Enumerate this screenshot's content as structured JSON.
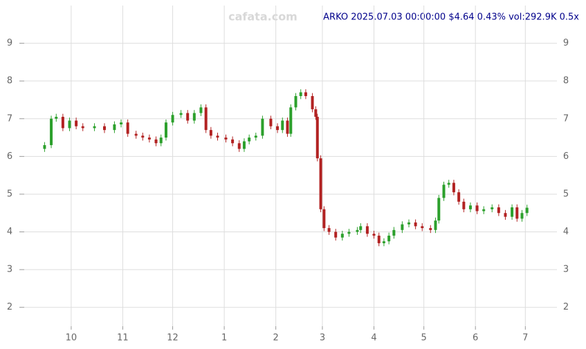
{
  "chart_data": {
    "type": "candlestick",
    "title": "ARKO 2025.07.03 00:00:00 $4.64 0.43% vol:292.9K 0.5x",
    "watermark": "cafata.com",
    "up_color": "#2ca02c",
    "down_color": "#b22222",
    "grid": true,
    "xlim": [
      -22,
      292
    ],
    "ylim": [
      1.5,
      10
    ],
    "yticks": [
      2,
      3,
      4,
      5,
      6,
      7,
      8,
      9
    ],
    "xticks": [
      {
        "value": 0,
        "label": "10"
      },
      {
        "value": 31,
        "label": "11"
      },
      {
        "value": 61,
        "label": "12"
      },
      {
        "value": 92,
        "label": "1"
      },
      {
        "value": 123,
        "label": "2"
      },
      {
        "value": 151,
        "label": "3"
      },
      {
        "value": 182,
        "label": "4"
      },
      {
        "value": 212,
        "label": "5"
      },
      {
        "value": 243,
        "label": "6"
      },
      {
        "value": 273,
        "label": "7"
      }
    ],
    "x": [
      -16,
      -12,
      -9,
      -5,
      -1,
      3,
      7,
      14,
      20,
      26,
      30,
      34,
      39,
      43,
      47,
      51,
      54,
      57,
      61,
      66,
      70,
      74,
      78,
      81,
      84,
      88,
      93,
      97,
      101,
      104,
      107,
      111,
      115,
      120,
      124,
      127,
      130,
      132,
      135,
      138,
      141,
      145,
      147,
      148,
      150,
      152,
      155,
      159,
      163,
      167,
      172,
      174,
      178,
      182,
      185,
      188,
      191,
      194,
      199,
      203,
      207,
      211,
      216,
      219,
      221,
      224,
      227,
      230,
      233,
      236,
      240,
      244,
      248,
      253,
      257,
      261,
      265,
      268,
      271,
      274
    ],
    "open": [
      6.2,
      6.3,
      7.0,
      7.05,
      6.75,
      6.95,
      6.8,
      6.75,
      6.8,
      6.7,
      6.85,
      6.9,
      6.6,
      6.55,
      6.5,
      6.45,
      6.35,
      6.5,
      6.9,
      7.1,
      7.15,
      6.95,
      7.15,
      7.3,
      6.7,
      6.55,
      6.5,
      6.45,
      6.35,
      6.2,
      6.4,
      6.5,
      6.55,
      7.0,
      6.8,
      6.7,
      6.95,
      6.6,
      7.3,
      7.6,
      7.7,
      7.6,
      7.25,
      7.05,
      5.95,
      4.6,
      4.1,
      4.0,
      3.85,
      3.95,
      4.0,
      4.05,
      4.15,
      3.95,
      3.9,
      3.7,
      3.75,
      3.9,
      4.05,
      4.2,
      4.25,
      4.15,
      4.1,
      4.05,
      4.3,
      4.9,
      5.25,
      5.3,
      5.05,
      4.8,
      4.6,
      4.7,
      4.55,
      4.6,
      4.65,
      4.5,
      4.4,
      4.65,
      4.35,
      4.5
    ],
    "high": [
      6.38,
      7.08,
      7.13,
      7.13,
      7.03,
      7.03,
      6.88,
      6.88,
      6.88,
      6.93,
      6.98,
      6.98,
      6.68,
      6.63,
      6.58,
      6.53,
      6.58,
      6.98,
      7.18,
      7.23,
      7.23,
      7.23,
      7.38,
      7.38,
      6.78,
      6.63,
      6.58,
      6.53,
      6.43,
      6.48,
      6.58,
      6.63,
      7.08,
      7.08,
      6.88,
      7.03,
      7.03,
      7.38,
      7.68,
      7.78,
      7.78,
      7.68,
      7.33,
      7.13,
      6.03,
      4.68,
      4.18,
      4.08,
      4.03,
      4.08,
      4.13,
      4.23,
      4.23,
      4.03,
      3.98,
      3.83,
      3.98,
      4.13,
      4.28,
      4.33,
      4.33,
      4.23,
      4.18,
      4.38,
      4.98,
      5.33,
      5.38,
      5.38,
      5.13,
      4.88,
      4.78,
      4.78,
      4.68,
      4.73,
      4.73,
      4.58,
      4.73,
      4.73,
      4.58,
      4.72
    ],
    "low": [
      6.12,
      6.22,
      6.92,
      6.67,
      6.67,
      6.72,
      6.67,
      6.67,
      6.62,
      6.62,
      6.77,
      6.52,
      6.47,
      6.42,
      6.37,
      6.27,
      6.27,
      6.42,
      6.82,
      7.02,
      6.87,
      6.87,
      7.07,
      6.62,
      6.47,
      6.42,
      6.37,
      6.27,
      6.12,
      6.12,
      6.32,
      6.42,
      6.47,
      6.72,
      6.62,
      6.62,
      6.52,
      6.52,
      7.22,
      7.52,
      7.52,
      7.17,
      6.97,
      5.87,
      4.52,
      4.02,
      3.92,
      3.77,
      3.77,
      3.87,
      3.92,
      3.97,
      3.87,
      3.82,
      3.62,
      3.62,
      3.67,
      3.82,
      3.97,
      4.12,
      4.07,
      4.02,
      3.97,
      3.97,
      4.22,
      4.82,
      5.17,
      4.97,
      4.72,
      4.52,
      4.52,
      4.47,
      4.47,
      4.52,
      4.42,
      4.32,
      4.32,
      4.27,
      4.27,
      4.42
    ],
    "close": [
      6.3,
      7.0,
      7.05,
      6.75,
      6.95,
      6.8,
      6.75,
      6.8,
      6.7,
      6.85,
      6.9,
      6.6,
      6.55,
      6.5,
      6.45,
      6.35,
      6.5,
      6.9,
      7.1,
      7.15,
      6.95,
      7.15,
      7.3,
      6.7,
      6.55,
      6.5,
      6.45,
      6.35,
      6.2,
      6.4,
      6.5,
      6.55,
      7.0,
      6.8,
      6.7,
      6.95,
      6.6,
      7.3,
      7.6,
      7.7,
      7.6,
      7.25,
      7.05,
      5.95,
      4.6,
      4.1,
      4.0,
      3.85,
      3.95,
      4.0,
      4.05,
      4.15,
      3.95,
      3.9,
      3.7,
      3.75,
      3.9,
      4.05,
      4.2,
      4.25,
      4.15,
      4.1,
      4.05,
      4.3,
      4.9,
      5.25,
      5.3,
      5.05,
      4.8,
      4.6,
      4.7,
      4.55,
      4.6,
      4.65,
      4.5,
      4.4,
      4.65,
      4.35,
      4.5,
      4.64
    ]
  }
}
